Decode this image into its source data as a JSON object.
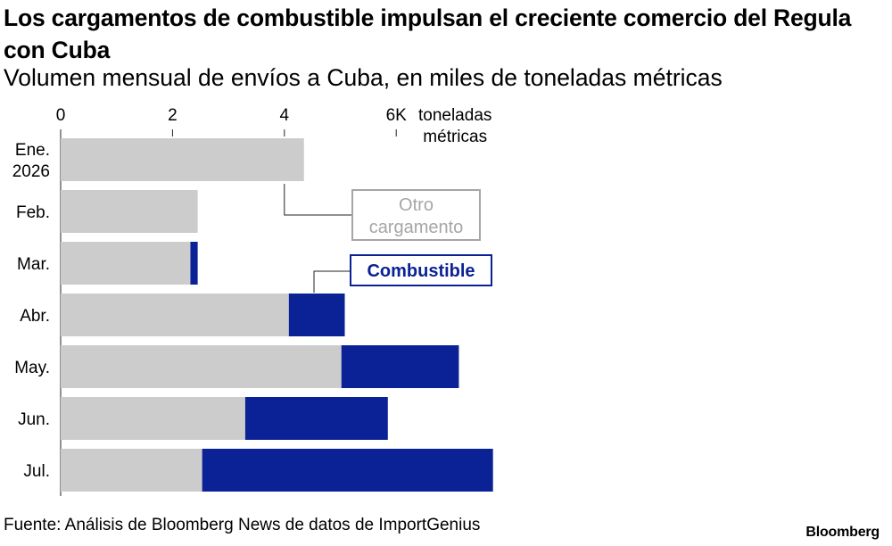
{
  "title": "Los cargamentos de combustible impulsan el creciente comercio del Regula con Cuba",
  "subtitle": "Volumen mensual de envíos a Cuba, en miles de toneladas métricas",
  "source": "Fuente: Análisis de Bloomberg News de datos de ImportGenius",
  "brand": "Bloomberg",
  "colors": {
    "other": "#cccccc",
    "fuel": "#0a2296",
    "other_label": "#a6a6a6"
  },
  "chart_data": {
    "type": "bar",
    "orientation": "horizontal",
    "stacked": true,
    "categories": [
      [
        "Ene.",
        "2026"
      ],
      [
        "Feb."
      ],
      [
        "Mar."
      ],
      [
        "Abr."
      ],
      [
        "May."
      ],
      [
        "Jun."
      ],
      [
        "Jul."
      ]
    ],
    "series": [
      {
        "name": "Otro cargamento",
        "values": [
          4.35,
          2.45,
          2.32,
          4.08,
          5.02,
          3.3,
          2.53
        ]
      },
      {
        "name": "Combustible",
        "values": [
          0,
          0,
          0.13,
          1.0,
          2.1,
          2.55,
          5.2
        ]
      }
    ],
    "x_ticks": [
      "0",
      "2",
      "4",
      "6K"
    ],
    "x_tick_values": [
      0,
      2,
      4,
      6
    ],
    "x_unit_lines": [
      "toneladas",
      "métricas"
    ],
    "xlim": [
      0,
      7.7
    ],
    "grid": false,
    "legend": "inline-labels"
  }
}
